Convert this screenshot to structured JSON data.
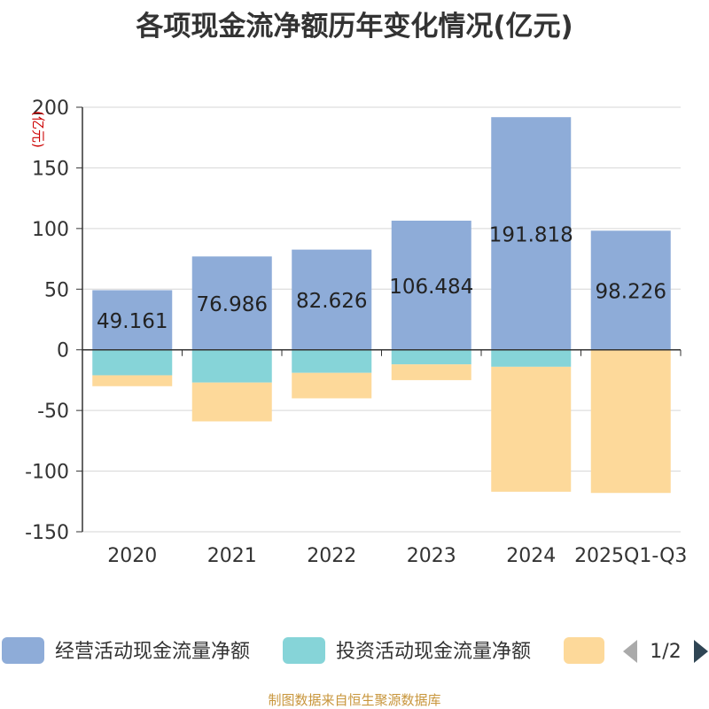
{
  "chart_data": {
    "type": "bar",
    "stacked": true,
    "title": "各项现金流净额历年变化情况(亿元)",
    "ylabel": "(亿元)",
    "xlabel": "",
    "ylim": [
      -150,
      200
    ],
    "yticks": [
      200,
      150,
      100,
      50,
      0,
      -50,
      -100,
      -150
    ],
    "grid": true,
    "categories": [
      "2020",
      "2021",
      "2022",
      "2023",
      "2024",
      "2025Q1-Q3"
    ],
    "series": [
      {
        "name": "经营活动现金流量净额",
        "color": "#8eacd8",
        "values": [
          49.161,
          76.986,
          82.626,
          106.484,
          191.818,
          98.226
        ]
      },
      {
        "name": "投资活动现金流量净额",
        "color": "#86d4d8",
        "values": [
          -21,
          -27,
          -19,
          -12,
          -14,
          0
        ]
      },
      {
        "name": "",
        "color": "#fdd99a",
        "values": [
          -9,
          -32,
          -21,
          -13,
          -103,
          -118
        ]
      }
    ],
    "data_labels": [
      "49.161",
      "76.986",
      "82.626",
      "106.484",
      "191.818",
      "98.226"
    ],
    "legend": {
      "position": "bottom",
      "page": "1/2"
    }
  },
  "source_text": "制图数据来自恒生聚源数据库"
}
